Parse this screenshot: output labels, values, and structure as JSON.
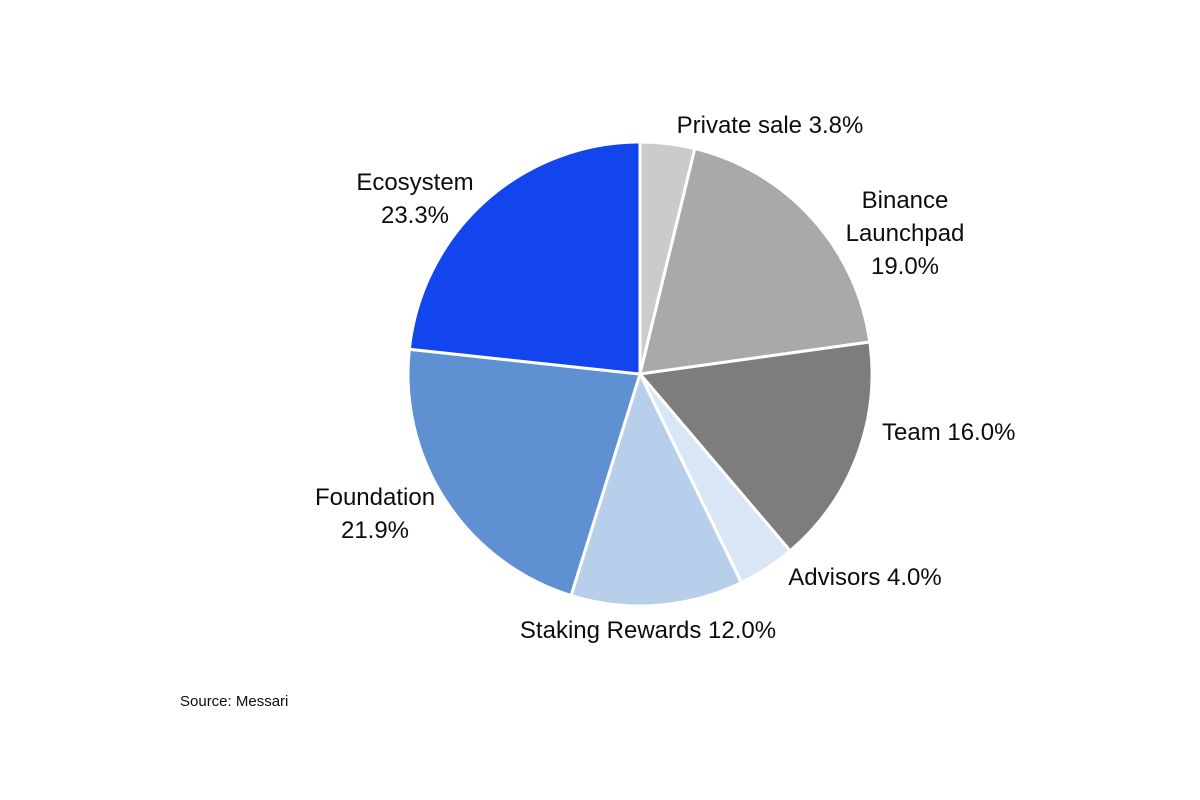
{
  "chart_data": {
    "type": "pie",
    "title": "",
    "legend": "none",
    "start_angle_deg": 0,
    "direction": "clockwise",
    "source": "Source: Messari",
    "slices": [
      {
        "label": "Private sale",
        "value": 3.8,
        "color": "#cbcbcb",
        "label_lines": [
          "Private sale 3.8%"
        ]
      },
      {
        "label": "Binance Launchpad",
        "value": 19.0,
        "color": "#a9a9a9",
        "label_lines": [
          "Binance",
          "Launchpad",
          "19.0%"
        ]
      },
      {
        "label": "Team",
        "value": 16.0,
        "color": "#7d7d7d",
        "label_lines": [
          "Team 16.0%"
        ]
      },
      {
        "label": "Advisors",
        "value": 4.0,
        "color": "#d8e6f6",
        "label_lines": [
          "Advisors 4.0%"
        ]
      },
      {
        "label": "Staking Rewards",
        "value": 12.0,
        "color": "#b7cfeb",
        "label_lines": [
          "Staking Rewards 12.0%"
        ]
      },
      {
        "label": "Foundation",
        "value": 21.9,
        "color": "#5f90d2",
        "label_lines": [
          "Foundation",
          "21.9%"
        ]
      },
      {
        "label": "Ecosystem",
        "value": 23.3,
        "color": "#1345ee",
        "label_lines": [
          "Ecosystem",
          "23.3%"
        ]
      }
    ]
  }
}
